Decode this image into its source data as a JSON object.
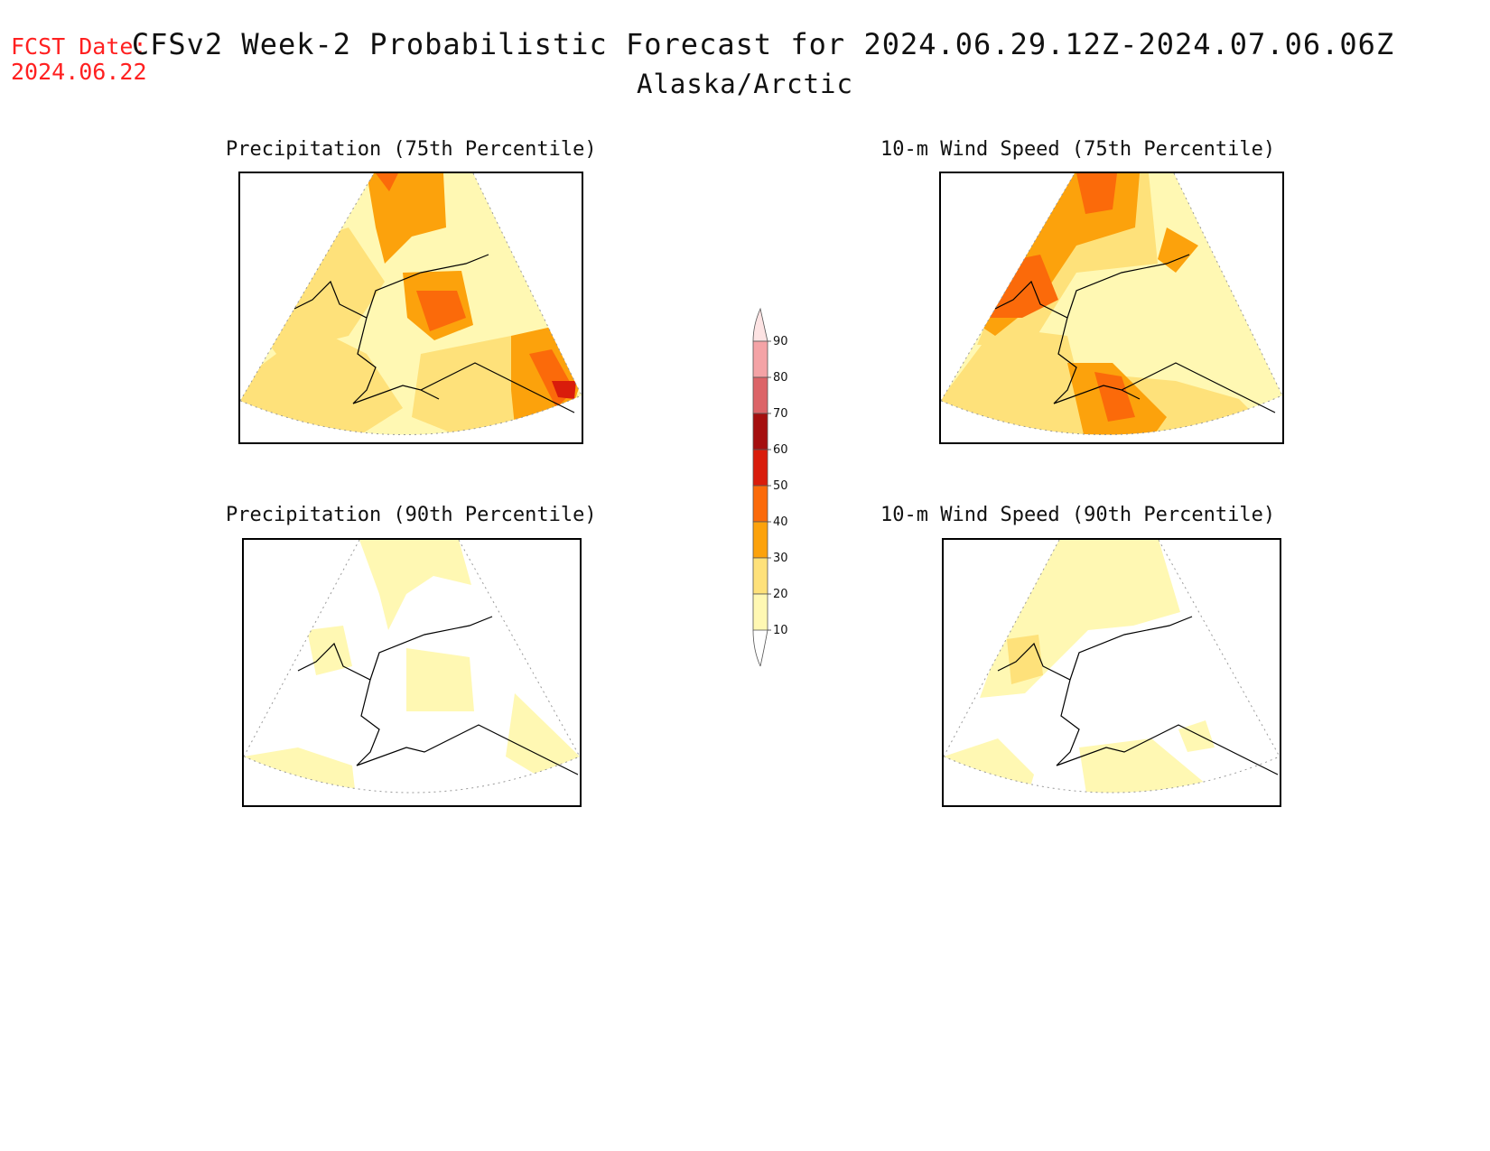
{
  "header": {
    "fcst_label": "FCST Date:",
    "fcst_date": "2024.06.22",
    "title": "CFSv2 Week-2 Probabilistic Forecast for 2024.06.29.12Z-2024.07.06.06Z",
    "subtitle": "Alaska/Arctic"
  },
  "panels": [
    {
      "id": "precip-75",
      "title": "Precipitation (75th Percentile)"
    },
    {
      "id": "wind-75",
      "title": "10-m Wind Speed (75th Percentile)"
    },
    {
      "id": "precip-90",
      "title": "Precipitation (90th Percentile)"
    },
    {
      "id": "wind-90",
      "title": "10-m Wind Speed (90th Percentile)"
    }
  ],
  "legend": {
    "labels": [
      "90",
      "80",
      "70",
      "60",
      "50",
      "40",
      "30",
      "20",
      "10"
    ],
    "colors": {
      "above_90": "#fde3e3",
      "80_90": "#f4a3a6",
      "70_80": "#dc6468",
      "60_70": "#a50f0f",
      "50_60": "#d91c0b",
      "40_50": "#fb6a0a",
      "30_40": "#fca20c",
      "20_30": "#fee17a",
      "10_20": "#fff8b3"
    }
  }
}
